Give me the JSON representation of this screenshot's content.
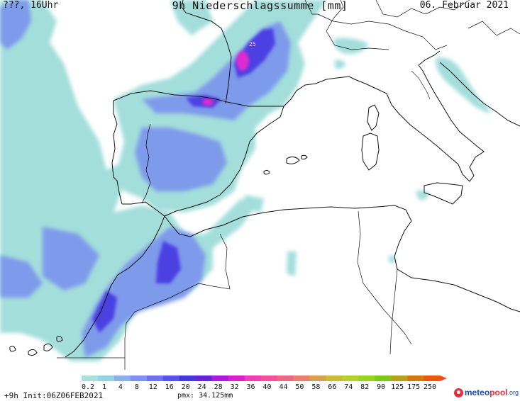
{
  "header": {
    "left": "???, 16Uhr",
    "title": "9h Niederschlagssumme [mm]",
    "date": "06. Februar 2021"
  },
  "map": {
    "max_marker": "25"
  },
  "colorbar": {
    "labels": [
      "0.2",
      "1",
      "4",
      "8",
      "12",
      "16",
      "20",
      "24",
      "28",
      "32",
      "36",
      "40",
      "44",
      "50",
      "58",
      "66",
      "74",
      "82",
      "90",
      "125",
      "175",
      "250"
    ],
    "colors": [
      "#a8e0dc",
      "#90d4e6",
      "#8cb0ec",
      "#7f92ef",
      "#6f72ee",
      "#5a52e8",
      "#4636e0",
      "#6a22d8",
      "#a81ed6",
      "#d822c8",
      "#f03cb6",
      "#f0529e",
      "#e86a86",
      "#e8806c",
      "#d8a052",
      "#c8bc3a",
      "#b4d22a",
      "#96d41e",
      "#7ec81c",
      "#b4a21a",
      "#d07a14",
      "#e85a10"
    ],
    "arrow_color": "#f04a1a"
  },
  "footer": {
    "run_info": "+9h Init:06Z06FEB2021",
    "pmx": "pmx: 34.125mm"
  },
  "logo": {
    "part1": "meteo",
    "part2": "pool",
    "part3": ".org"
  },
  "colors": {
    "precip_light": "#9fdcd8",
    "precip_mid": "#7e9fec",
    "precip_dark": "#4a3ee0",
    "precip_peak": "#e02cd0",
    "coast": "#111111"
  }
}
